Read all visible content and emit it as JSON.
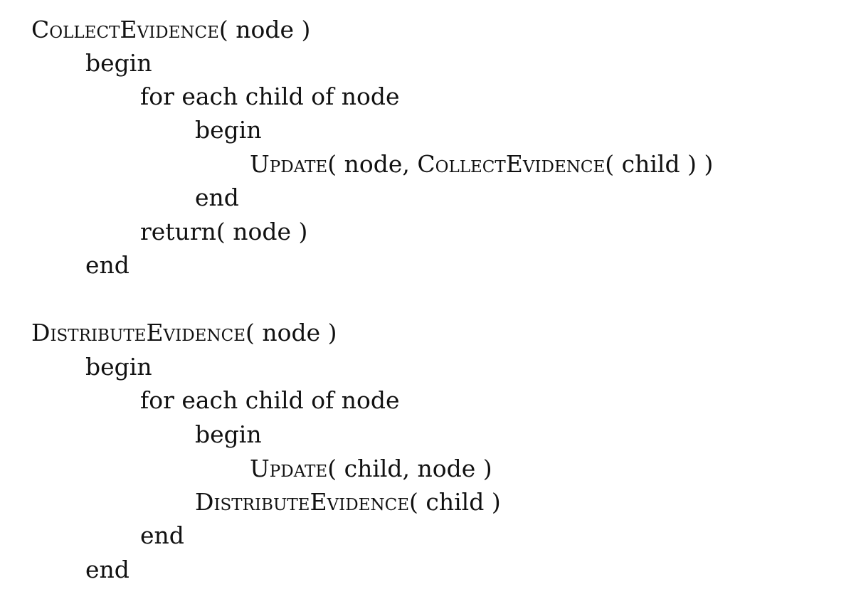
{
  "algorithm": {
    "collect": {
      "signature": {
        "fn": "CollectEvidence",
        "args": "( node )"
      },
      "begin": "begin",
      "loop": "for each child of node",
      "inner_begin": "begin",
      "update_call": {
        "fn": "Update",
        "pre": "( node, ",
        "fn2": "CollectEvidence",
        "post": "( child ) )"
      },
      "inner_end": "end",
      "return_stmt": "return( node )",
      "end": "end"
    },
    "distribute": {
      "signature": {
        "fn": "DistributeEvidence",
        "args": "( node )"
      },
      "begin": "begin",
      "loop": "for each child of node",
      "inner_begin": "begin",
      "update_call": {
        "fn": "Update",
        "args": "( child, node )"
      },
      "recursive_call": {
        "fn": "DistributeEvidence",
        "args": "( child )"
      },
      "loop_end": "end",
      "end": "end"
    }
  }
}
